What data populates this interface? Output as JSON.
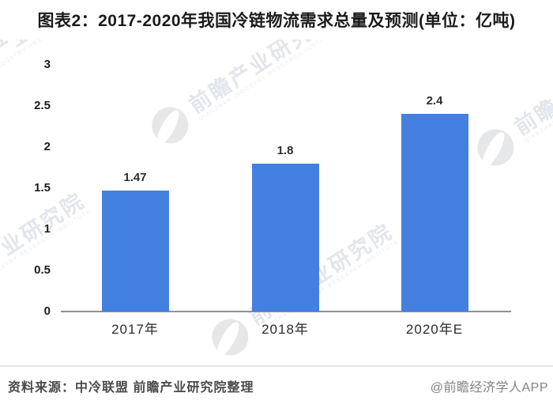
{
  "title": "图表2：2017-2020年我国冷链物流需求总量及预测(单位：亿吨)",
  "chart_data": {
    "type": "bar",
    "title": "图表2：2017-2020年我国冷链物流需求总量及预测",
    "unit": "亿吨",
    "categories": [
      "2017年",
      "2018年",
      "2020年E"
    ],
    "values": [
      1.47,
      1.8,
      2.4
    ],
    "value_labels": [
      "1.47",
      "1.8",
      "2.4"
    ],
    "xlabel": "",
    "ylabel": "",
    "ylim": [
      0,
      3
    ],
    "yticks": [
      0,
      0.5,
      1,
      1.5,
      2,
      2.5,
      3
    ],
    "ytick_labels": [
      "0",
      "0.5",
      "1",
      "1.5",
      "2",
      "2.5",
      "3"
    ],
    "bar_color": "#4380e0",
    "grid": false,
    "legend": "none"
  },
  "watermark": {
    "logo_icon": "qianzhan-logo-icon",
    "text": "前瞻产业研究院",
    "subtext": "QIANZHAN INDUSTRY RESEARCH INSTITUTE"
  },
  "footer": {
    "source": "资料来源：中冷联盟 前瞻产业研究院整理",
    "credit": "@前瞻经济学人APP"
  }
}
